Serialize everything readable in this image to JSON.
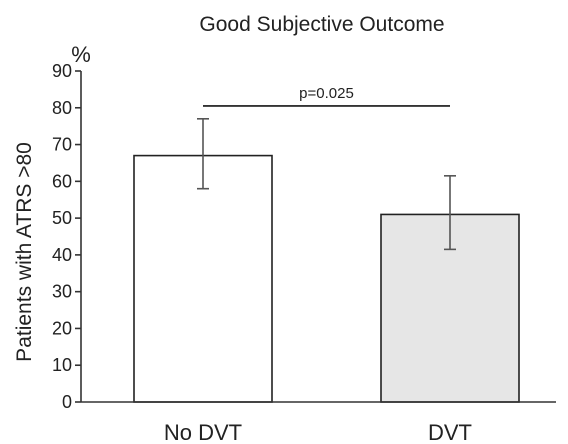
{
  "chart_data": {
    "type": "bar",
    "title": "Good Subjective Outcome",
    "ylabel": "Patients with ATRS >80",
    "yunit": "%",
    "xlabel": "",
    "ylim": [
      0,
      90
    ],
    "yticks": [
      0,
      10,
      20,
      30,
      40,
      50,
      60,
      70,
      80,
      90
    ],
    "grid": false,
    "categories": [
      "No DVT",
      "DVT"
    ],
    "values": [
      67,
      51
    ],
    "error_bars": [
      {
        "low": 58,
        "high": 77
      },
      {
        "low": 41.5,
        "high": 61.5
      }
    ],
    "bar_colors": [
      "#ffffff",
      "#e6e6e6"
    ],
    "annotation": {
      "text": "p=0.025",
      "y": 80.5,
      "between": [
        "No DVT",
        "DVT"
      ]
    }
  }
}
